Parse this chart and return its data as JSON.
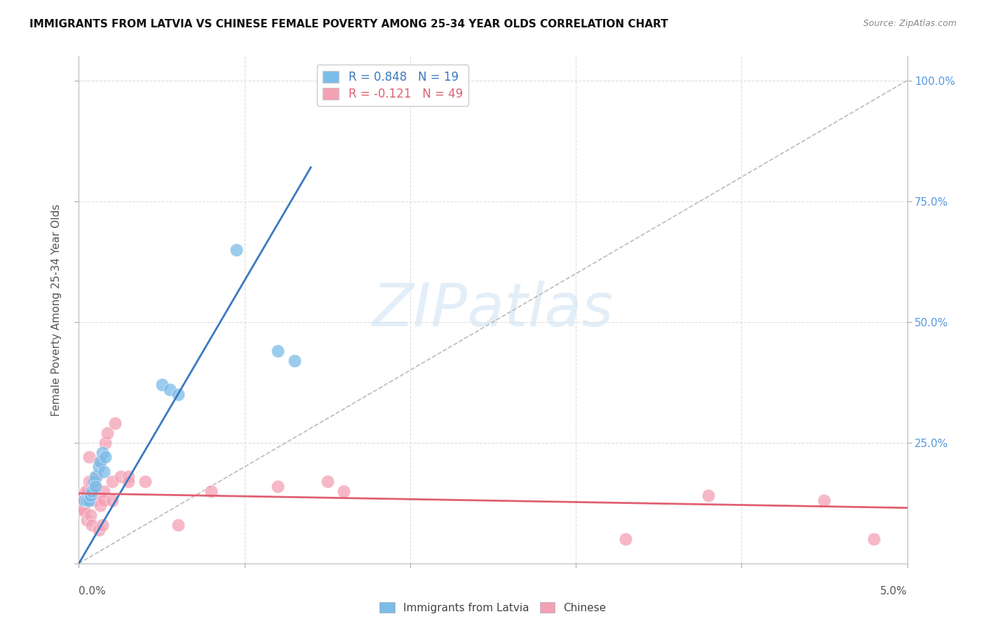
{
  "title": "IMMIGRANTS FROM LATVIA VS CHINESE FEMALE POVERTY AMONG 25-34 YEAR OLDS CORRELATION CHART",
  "source": "Source: ZipAtlas.com",
  "ylabel": "Female Poverty Among 25-34 Year Olds",
  "legend_blue_text": "R = 0.848   N = 19",
  "legend_pink_text": "R = -0.121   N = 49",
  "legend_blue_label": "Immigrants from Latvia",
  "legend_pink_label": "Chinese",
  "blue_color": "#7bbce8",
  "pink_color": "#f4a0b5",
  "blue_line_color": "#3a7abf",
  "pink_line_color": "#e06070",
  "ref_line_color": "#bbbbbb",
  "background_color": "#ffffff",
  "grid_color": "#dddddd",
  "title_color": "#111111",
  "right_axis_color": "#5599dd",
  "blue_scatter_x": [
    0.0003,
    0.0005,
    0.0006,
    0.0007,
    0.0008,
    0.0009,
    0.001,
    0.001,
    0.0012,
    0.0013,
    0.0014,
    0.0015,
    0.0016,
    0.005,
    0.0055,
    0.006,
    0.0095,
    0.012,
    0.013
  ],
  "blue_scatter_y": [
    0.13,
    0.13,
    0.13,
    0.14,
    0.15,
    0.17,
    0.18,
    0.16,
    0.2,
    0.21,
    0.23,
    0.19,
    0.22,
    0.37,
    0.36,
    0.35,
    0.65,
    0.44,
    0.42
  ],
  "pink_scatter_x": [
    5e-05,
    0.0001,
    0.0001,
    0.0002,
    0.0002,
    0.0002,
    0.0003,
    0.0003,
    0.0003,
    0.0004,
    0.0004,
    0.0005,
    0.0005,
    0.0005,
    0.0006,
    0.0006,
    0.0007,
    0.0007,
    0.0008,
    0.0008,
    0.0009,
    0.001,
    0.001,
    0.001,
    0.0011,
    0.0012,
    0.0012,
    0.0013,
    0.0014,
    0.0015,
    0.0015,
    0.0016,
    0.0017,
    0.002,
    0.002,
    0.0022,
    0.0025,
    0.003,
    0.003,
    0.004,
    0.006,
    0.008,
    0.012,
    0.015,
    0.016,
    0.033,
    0.038,
    0.045,
    0.048
  ],
  "pink_scatter_y": [
    0.14,
    0.13,
    0.12,
    0.12,
    0.14,
    0.11,
    0.14,
    0.11,
    0.13,
    0.15,
    0.13,
    0.14,
    0.15,
    0.09,
    0.17,
    0.22,
    0.13,
    0.1,
    0.17,
    0.08,
    0.15,
    0.14,
    0.16,
    0.13,
    0.18,
    0.21,
    0.07,
    0.12,
    0.08,
    0.15,
    0.13,
    0.25,
    0.27,
    0.17,
    0.13,
    0.29,
    0.18,
    0.18,
    0.17,
    0.17,
    0.08,
    0.15,
    0.16,
    0.17,
    0.15,
    0.05,
    0.14,
    0.13,
    0.05
  ],
  "blue_line_x0": 0.0,
  "blue_line_y0": 0.0,
  "blue_line_x1": 0.014,
  "blue_line_y1": 0.82,
  "pink_line_x0": 0.0,
  "pink_line_y0": 0.145,
  "pink_line_x1": 0.05,
  "pink_line_y1": 0.115,
  "ref_line_x0": 0.0,
  "ref_line_y0": 0.0,
  "ref_line_x1": 0.05,
  "ref_line_y1": 1.0,
  "xmin": 0.0,
  "xmax": 0.05,
  "ymin": 0.0,
  "ymax": 1.05,
  "watermark": "ZIPatlas"
}
